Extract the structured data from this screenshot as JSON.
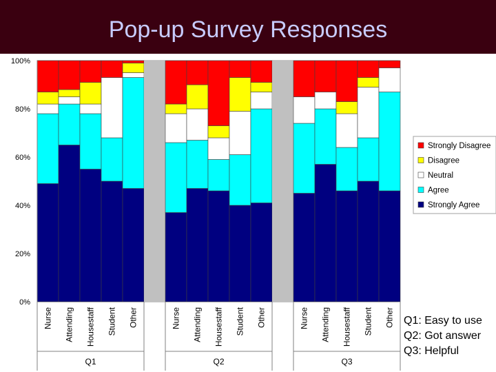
{
  "title": "Pop-up Survey Responses",
  "notes": [
    "Q1: Easy to use",
    "Q2: Got answer",
    "Q3: Helpful"
  ],
  "colors": {
    "Strongly Disagree": "#ff0000",
    "Disagree": "#ffff00",
    "Neutral": "#ffffff",
    "Agree": "#00ffff",
    "Strongly Agree": "#000080",
    "plot_background": "#ffffff",
    "gap": "#c0c0c0"
  },
  "chart_data": {
    "type": "bar",
    "stacked": true,
    "percent": true,
    "groups": [
      {
        "name": "Q1",
        "categories": [
          "Nurse",
          "Attending",
          "Housestaff",
          "Student",
          "Other"
        ],
        "series": [
          {
            "name": "Strongly Agree",
            "values": [
              49,
              65,
              55,
              50,
              47
            ]
          },
          {
            "name": "Agree",
            "values": [
              29,
              17,
              23,
              18,
              46
            ]
          },
          {
            "name": "Neutral",
            "values": [
              4,
              3,
              4,
              25,
              2
            ]
          },
          {
            "name": "Disagree",
            "values": [
              5,
              3,
              9,
              0,
              4
            ]
          },
          {
            "name": "Strongly Disagree",
            "values": [
              13,
              12,
              9,
              7,
              1
            ]
          }
        ]
      },
      {
        "name": "Q2",
        "categories": [
          "Nurse",
          "Attending",
          "Housestaff",
          "Student",
          "Other"
        ],
        "series": [
          {
            "name": "Strongly Agree",
            "values": [
              37,
              47,
              46,
              40,
              41
            ]
          },
          {
            "name": "Agree",
            "values": [
              29,
              20,
              13,
              21,
              39
            ]
          },
          {
            "name": "Neutral",
            "values": [
              12,
              13,
              9,
              18,
              7
            ]
          },
          {
            "name": "Disagree",
            "values": [
              4,
              10,
              5,
              14,
              4
            ]
          },
          {
            "name": "Strongly Disagree",
            "values": [
              18,
              10,
              27,
              7,
              9
            ]
          }
        ]
      },
      {
        "name": "Q3",
        "categories": [
          "Nurse",
          "Attending",
          "Housestaff",
          "Student",
          "Other"
        ],
        "series": [
          {
            "name": "Strongly Agree",
            "values": [
              45,
              57,
              46,
              50,
              46
            ]
          },
          {
            "name": "Agree",
            "values": [
              29,
              23,
              18,
              18,
              41
            ]
          },
          {
            "name": "Neutral",
            "values": [
              11,
              7,
              14,
              21,
              10
            ]
          },
          {
            "name": "Disagree",
            "values": [
              0,
              0,
              5,
              4,
              0
            ]
          },
          {
            "name": "Strongly Disagree",
            "values": [
              15,
              13,
              17,
              7,
              3
            ]
          }
        ]
      }
    ],
    "ylim": [
      0,
      100
    ],
    "yticks": [
      "0%",
      "20%",
      "40%",
      "60%",
      "80%",
      "100%"
    ],
    "grid": true,
    "legend": {
      "position": "right",
      "entries": [
        "Strongly Disagree",
        "Disagree",
        "Neutral",
        "Agree",
        "Strongly Agree"
      ]
    }
  }
}
